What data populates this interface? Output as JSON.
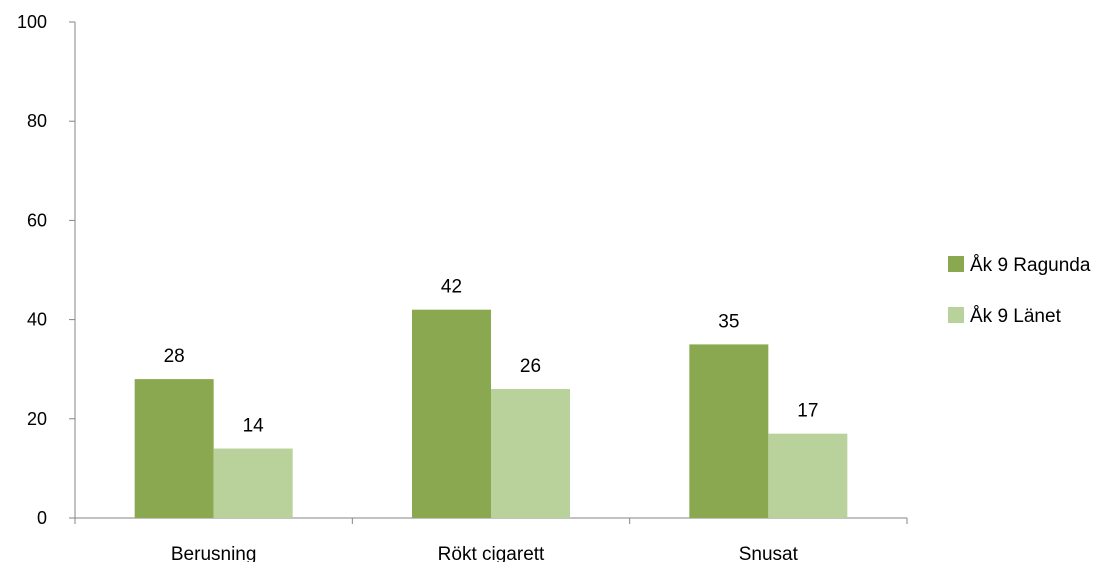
{
  "chart_data": {
    "type": "bar",
    "title": "",
    "xlabel": "",
    "ylabel": "",
    "categories": [
      "Berusning",
      "Rökt cigarett",
      "Snusat"
    ],
    "series": [
      {
        "name": "Åk 9 Ragunda",
        "values": [
          28,
          42,
          35
        ],
        "color": "#8aa84f"
      },
      {
        "name": "Åk 9 Länet",
        "values": [
          14,
          26,
          17
        ],
        "color": "#b9d19a"
      }
    ],
    "ylim": [
      0,
      100
    ],
    "yticks": [
      0,
      20,
      40,
      60,
      80,
      100
    ],
    "grid": false,
    "legend": "right"
  }
}
